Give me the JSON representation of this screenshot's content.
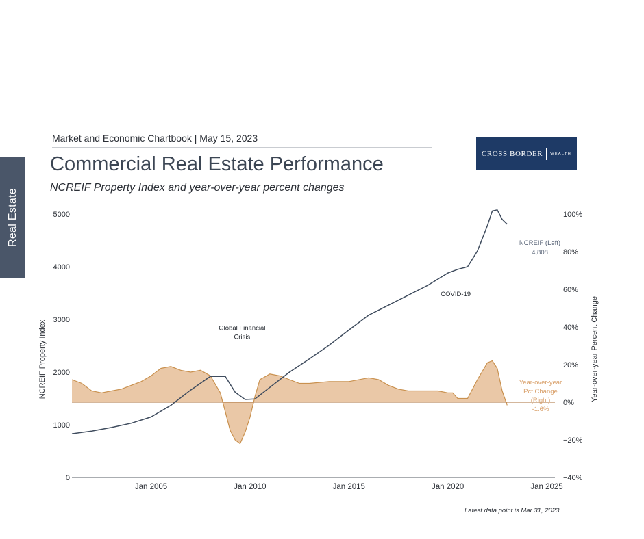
{
  "side_tab": "Real Estate",
  "header": "Market and Economic Chartbook | May 15, 2023",
  "title": "Commercial Real Estate Performance",
  "subtitle": "NCREIF Property Index and year-over-year percent changes",
  "logo": {
    "main": "CROSS BORDER",
    "sub": "WEALTH"
  },
  "footnote": "Latest data point is Mar 31, 2023",
  "colors": {
    "index_line": "#3f4c5e",
    "pct_fill": "#e8c29d",
    "pct_stroke": "#c9914f",
    "pct_label": "#d9a06a",
    "tab": "#4a5669",
    "logo_bg": "#1e3a66"
  },
  "chart_data": {
    "type": "line",
    "title": "",
    "xlabel": "",
    "ylabel": "NCREIF Property Index",
    "y2label": "Year-over-year Percent Change",
    "x_range": [
      2001.0,
      2025.0
    ],
    "x_ticks": [
      {
        "x": 2005.0,
        "label": "Jan 2005"
      },
      {
        "x": 2010.0,
        "label": "Jan 2010"
      },
      {
        "x": 2015.0,
        "label": "Jan 2015"
      },
      {
        "x": 2020.0,
        "label": "Jan 2020"
      },
      {
        "x": 2025.0,
        "label": "Jan 2025"
      }
    ],
    "ylim": [
      0,
      5000
    ],
    "y_ticks": [
      0,
      1000,
      2000,
      3000,
      4000,
      5000
    ],
    "y2lim": [
      -40,
      100
    ],
    "y2_ticks": [
      {
        "v": -40,
        "label": "−40%"
      },
      {
        "v": -20,
        "label": "−20%"
      },
      {
        "v": 0,
        "label": "0%"
      },
      {
        "v": 20,
        "label": "20%"
      },
      {
        "v": 40,
        "label": "40%"
      },
      {
        "v": 60,
        "label": "60%"
      },
      {
        "v": 80,
        "label": "80%"
      },
      {
        "v": 100,
        "label": "100%"
      }
    ],
    "series": [
      {
        "name": "NCREIF (Left)",
        "axis": "left",
        "x": [
          2001.0,
          2002.0,
          2003.0,
          2004.0,
          2005.0,
          2006.0,
          2007.0,
          2008.0,
          2008.75,
          2009.25,
          2009.75,
          2010.25,
          2011.0,
          2012.0,
          2013.0,
          2014.0,
          2015.0,
          2016.0,
          2017.0,
          2018.0,
          2019.0,
          2020.0,
          2020.5,
          2021.0,
          2021.5,
          2022.0,
          2022.25,
          2022.5,
          2022.75,
          2023.0
        ],
        "values": [
          830,
          880,
          950,
          1030,
          1150,
          1370,
          1660,
          1920,
          1920,
          1620,
          1480,
          1490,
          1710,
          2000,
          2250,
          2510,
          2800,
          3080,
          3270,
          3460,
          3650,
          3880,
          3950,
          4000,
          4300,
          4780,
          5060,
          5080,
          4900,
          4808
        ],
        "end_label": "4,808"
      },
      {
        "name": "Year-over-year Pct Change (Right)",
        "axis": "right",
        "x": [
          2001.0,
          2001.5,
          2002.0,
          2002.5,
          2003.0,
          2003.5,
          2004.0,
          2004.5,
          2005.0,
          2005.5,
          2006.0,
          2006.5,
          2007.0,
          2007.5,
          2008.0,
          2008.5,
          2009.0,
          2009.25,
          2009.5,
          2009.75,
          2010.0,
          2010.25,
          2010.5,
          2011.0,
          2011.5,
          2012.0,
          2012.5,
          2013.0,
          2014.0,
          2015.0,
          2016.0,
          2016.5,
          2017.0,
          2017.5,
          2018.0,
          2019.0,
          2019.5,
          2020.0,
          2020.25,
          2020.5,
          2021.0,
          2021.5,
          2022.0,
          2022.25,
          2022.5,
          2022.75,
          2023.0
        ],
        "values": [
          12,
          10,
          6,
          5,
          6,
          7,
          9,
          11,
          14,
          18,
          19,
          17,
          16,
          17,
          14,
          5,
          -15,
          -20,
          -22,
          -16,
          -8,
          3,
          12,
          15,
          14,
          12,
          10,
          10,
          11,
          11,
          13,
          12,
          9,
          7,
          6,
          6,
          6,
          5,
          5,
          2,
          2,
          12,
          21,
          22,
          18,
          6,
          -1.6
        ],
        "end_label": "-1.6%"
      }
    ],
    "annotations": [
      {
        "text": "Global Financial Crisis",
        "lines": [
          "Global Financial",
          "Crisis"
        ],
        "x": 2009.6,
        "y": 2800
      },
      {
        "text": "COVID-19",
        "lines": [
          "COVID-19"
        ],
        "x": 2020.4,
        "y": 3440
      }
    ],
    "series_labels": [
      {
        "lines": [
          "NCREIF (Left)",
          "4,808"
        ]
      },
      {
        "lines": [
          "Year-over-year",
          "Pct Change",
          "(Right)",
          "-1.6%"
        ]
      }
    ],
    "grid": false,
    "legend": "none"
  }
}
